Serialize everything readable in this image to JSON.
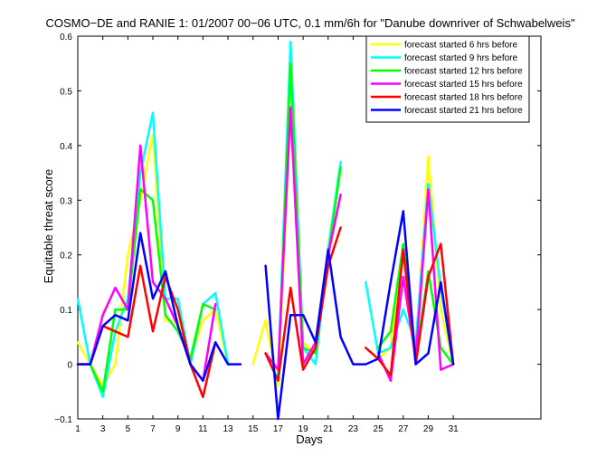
{
  "chart_data": {
    "type": "line",
    "title": "COSMO−DE and RANIE 1: 01/2007 00−06 UTC, 0.1 mm/6h for \"Danube downriver of Schwabelweis\"",
    "xlabel": "Days",
    "ylabel": "Equitable threat score",
    "xlim": [
      1,
      38
    ],
    "ylim": [
      -0.1,
      0.6
    ],
    "xticks": [
      "1",
      "3",
      "5",
      "7",
      "9",
      "11",
      "13",
      "15",
      "17",
      "19",
      "21",
      "23",
      "25",
      "27",
      "29",
      "31"
    ],
    "yticks": [
      "−0.1",
      "0",
      "0.1",
      "0.2",
      "0.3",
      "0.4",
      "0.5",
      "0.6"
    ],
    "grid": false,
    "legend_position": "top-right",
    "x": [
      1,
      2,
      3,
      4,
      5,
      6,
      7,
      8,
      9,
      10,
      11,
      12,
      13,
      14,
      15,
      16,
      17,
      18,
      19,
      20,
      21,
      22,
      23,
      24,
      25,
      26,
      27,
      28,
      29,
      30,
      31
    ],
    "series": [
      {
        "name": "forecast started 6 hrs before",
        "color": "#ffff00",
        "values": [
          0.04,
          0.0,
          -0.04,
          0.0,
          0.2,
          0.3,
          0.42,
          0.08,
          0.08,
          0.01,
          0.08,
          0.1,
          0.0,
          null,
          0.0,
          0.08,
          -0.04,
          0.46,
          0.04,
          0.02,
          0.2,
          0.37,
          null,
          null,
          0.01,
          0.03,
          0.2,
          0.02,
          0.38,
          0.1,
          0.0
        ]
      },
      {
        "name": "forecast started 9 hrs before",
        "color": "#00ffff",
        "values": [
          0.12,
          0.0,
          -0.06,
          0.06,
          0.12,
          0.35,
          0.46,
          0.12,
          0.12,
          0.0,
          0.11,
          0.13,
          0.0,
          null,
          null,
          null,
          -0.02,
          0.59,
          0.03,
          0.0,
          0.21,
          0.37,
          null,
          0.15,
          0.02,
          0.03,
          0.1,
          0.04,
          0.33,
          0.14,
          0.0
        ]
      },
      {
        "name": "forecast started 12 hrs before",
        "color": "#00ff00",
        "values": [
          0.0,
          0.0,
          -0.05,
          0.1,
          0.1,
          0.32,
          0.3,
          0.09,
          0.06,
          0.01,
          0.11,
          0.1,
          null,
          null,
          null,
          null,
          -0.03,
          0.55,
          0.03,
          0.02,
          0.2,
          0.36,
          null,
          null,
          0.03,
          0.06,
          0.22,
          0.01,
          0.17,
          0.03,
          0.0
        ]
      },
      {
        "name": "forecast started 15 hrs before",
        "color": "#ff00ff",
        "values": [
          0.0,
          0.0,
          0.09,
          0.14,
          0.1,
          0.4,
          0.15,
          0.12,
          0.07,
          0.0,
          -0.03,
          0.11,
          null,
          null,
          null,
          0.02,
          -0.01,
          0.47,
          0.0,
          0.04,
          0.2,
          0.31,
          null,
          null,
          0.02,
          -0.03,
          0.16,
          0.01,
          0.32,
          -0.01,
          0.0
        ]
      },
      {
        "name": "forecast started 18 hrs before",
        "color": "#ff0000",
        "values": [
          0.0,
          0.0,
          0.07,
          0.06,
          0.05,
          0.18,
          0.06,
          0.16,
          0.1,
          0.0,
          -0.06,
          0.04,
          null,
          null,
          null,
          0.02,
          -0.03,
          0.14,
          -0.01,
          0.03,
          0.18,
          0.25,
          null,
          0.03,
          0.01,
          -0.02,
          0.21,
          0.0,
          0.16,
          0.22,
          0.0
        ]
      },
      {
        "name": "forecast started 21 hrs before",
        "color": "#0000ff",
        "values": [
          0.0,
          0.0,
          0.07,
          0.09,
          0.08,
          0.24,
          0.12,
          0.17,
          0.07,
          0.0,
          -0.03,
          0.04,
          0.0,
          0.0,
          null,
          0.18,
          -0.1,
          0.09,
          0.09,
          0.04,
          0.21,
          0.05,
          0.0,
          0.0,
          0.01,
          0.15,
          0.28,
          0.0,
          0.02,
          0.15,
          0.0
        ]
      }
    ]
  }
}
